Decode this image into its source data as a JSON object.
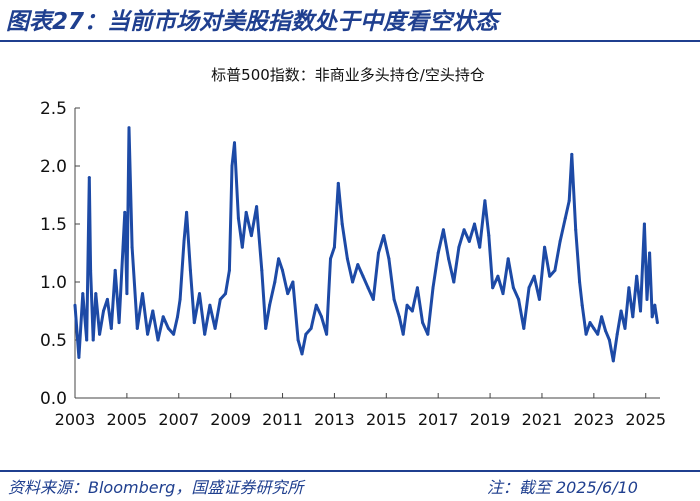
{
  "header": {
    "title": "图表27：当前市场对美股指数处于中度看空状态"
  },
  "footer": {
    "source": "资料来源：Bloomberg，国盛证券研究所",
    "note": "注：截至 2025/6/10"
  },
  "colors": {
    "brand": "#1f3f8f",
    "series": "#1d4aa6"
  },
  "chart_data": {
    "type": "line",
    "title": "标普500指数：非商业多头持仓/空头持仓",
    "xlabel": "",
    "ylabel": "",
    "ylim": [
      0,
      2.5
    ],
    "xlim": [
      2003,
      2025.55
    ],
    "y_ticks": [
      "0.0",
      "0.5",
      "1.0",
      "1.5",
      "2.0",
      "2.5"
    ],
    "x_ticks": [
      "2003",
      "2005",
      "2007",
      "2009",
      "2011",
      "2013",
      "2015",
      "2017",
      "2019",
      "2021",
      "2023",
      "2025"
    ],
    "grid": false,
    "legend": "none",
    "series": [
      {
        "x": [
          2003.0,
          2003.15,
          2003.3,
          2003.45,
          2003.55,
          2003.6,
          2003.7,
          2003.8,
          2003.95,
          2004.1,
          2004.25,
          2004.4,
          2004.55,
          2004.7,
          2004.85,
          2004.92,
          2005.0,
          2005.08,
          2005.2,
          2005.4,
          2005.6,
          2005.8,
          2006.0,
          2006.2,
          2006.4,
          2006.6,
          2006.8,
          2006.95,
          2007.05,
          2007.2,
          2007.3,
          2007.45,
          2007.6,
          2007.8,
          2008.0,
          2008.2,
          2008.4,
          2008.6,
          2008.8,
          2008.95,
          2009.05,
          2009.15,
          2009.3,
          2009.45,
          2009.6,
          2009.8,
          2010.0,
          2010.2,
          2010.35,
          2010.5,
          2010.7,
          2010.85,
          2011.0,
          2011.2,
          2011.4,
          2011.6,
          2011.75,
          2011.9,
          2012.1,
          2012.3,
          2012.5,
          2012.7,
          2012.85,
          2013.0,
          2013.15,
          2013.3,
          2013.5,
          2013.7,
          2013.9,
          2014.1,
          2014.3,
          2014.5,
          2014.7,
          2014.9,
          2015.1,
          2015.3,
          2015.5,
          2015.65,
          2015.8,
          2016.0,
          2016.2,
          2016.4,
          2016.6,
          2016.8,
          2017.0,
          2017.2,
          2017.4,
          2017.6,
          2017.8,
          2018.0,
          2018.2,
          2018.4,
          2018.6,
          2018.8,
          2018.95,
          2019.1,
          2019.3,
          2019.5,
          2019.7,
          2019.9,
          2020.1,
          2020.3,
          2020.5,
          2020.7,
          2020.9,
          2021.1,
          2021.3,
          2021.5,
          2021.7,
          2021.9,
          2022.05,
          2022.15,
          2022.3,
          2022.45,
          2022.55,
          2022.7,
          2022.85,
          2023.0,
          2023.15,
          2023.3,
          2023.45,
          2023.6,
          2023.75,
          2023.9,
          2024.05,
          2024.2,
          2024.35,
          2024.5,
          2024.65,
          2024.8,
          2024.95,
          2025.05,
          2025.15,
          2025.25,
          2025.35,
          2025.45
        ],
        "values": [
          0.8,
          0.35,
          0.9,
          0.5,
          1.9,
          1.1,
          0.5,
          0.9,
          0.55,
          0.75,
          0.85,
          0.6,
          1.1,
          0.65,
          1.3,
          1.6,
          0.9,
          2.33,
          1.3,
          0.6,
          0.9,
          0.55,
          0.75,
          0.5,
          0.7,
          0.6,
          0.55,
          0.7,
          0.85,
          1.35,
          1.6,
          1.1,
          0.65,
          0.9,
          0.55,
          0.8,
          0.6,
          0.85,
          0.9,
          1.1,
          2.0,
          2.2,
          1.55,
          1.3,
          1.6,
          1.4,
          1.65,
          1.1,
          0.6,
          0.8,
          1.0,
          1.2,
          1.1,
          0.9,
          1.0,
          0.5,
          0.38,
          0.55,
          0.6,
          0.8,
          0.7,
          0.55,
          1.2,
          1.3,
          1.85,
          1.5,
          1.2,
          1.0,
          1.15,
          1.05,
          0.95,
          0.85,
          1.25,
          1.4,
          1.2,
          0.85,
          0.7,
          0.55,
          0.8,
          0.75,
          0.95,
          0.65,
          0.55,
          0.95,
          1.25,
          1.45,
          1.2,
          1.0,
          1.3,
          1.45,
          1.35,
          1.5,
          1.3,
          1.7,
          1.4,
          0.95,
          1.05,
          0.9,
          1.2,
          0.95,
          0.85,
          0.6,
          0.95,
          1.05,
          0.85,
          1.3,
          1.05,
          1.1,
          1.35,
          1.55,
          1.7,
          2.1,
          1.45,
          1.0,
          0.8,
          0.55,
          0.65,
          0.6,
          0.55,
          0.7,
          0.58,
          0.5,
          0.32,
          0.55,
          0.75,
          0.6,
          0.95,
          0.7,
          1.05,
          0.75,
          1.5,
          0.85,
          1.25,
          0.7,
          0.8,
          0.65
        ]
      }
    ]
  }
}
